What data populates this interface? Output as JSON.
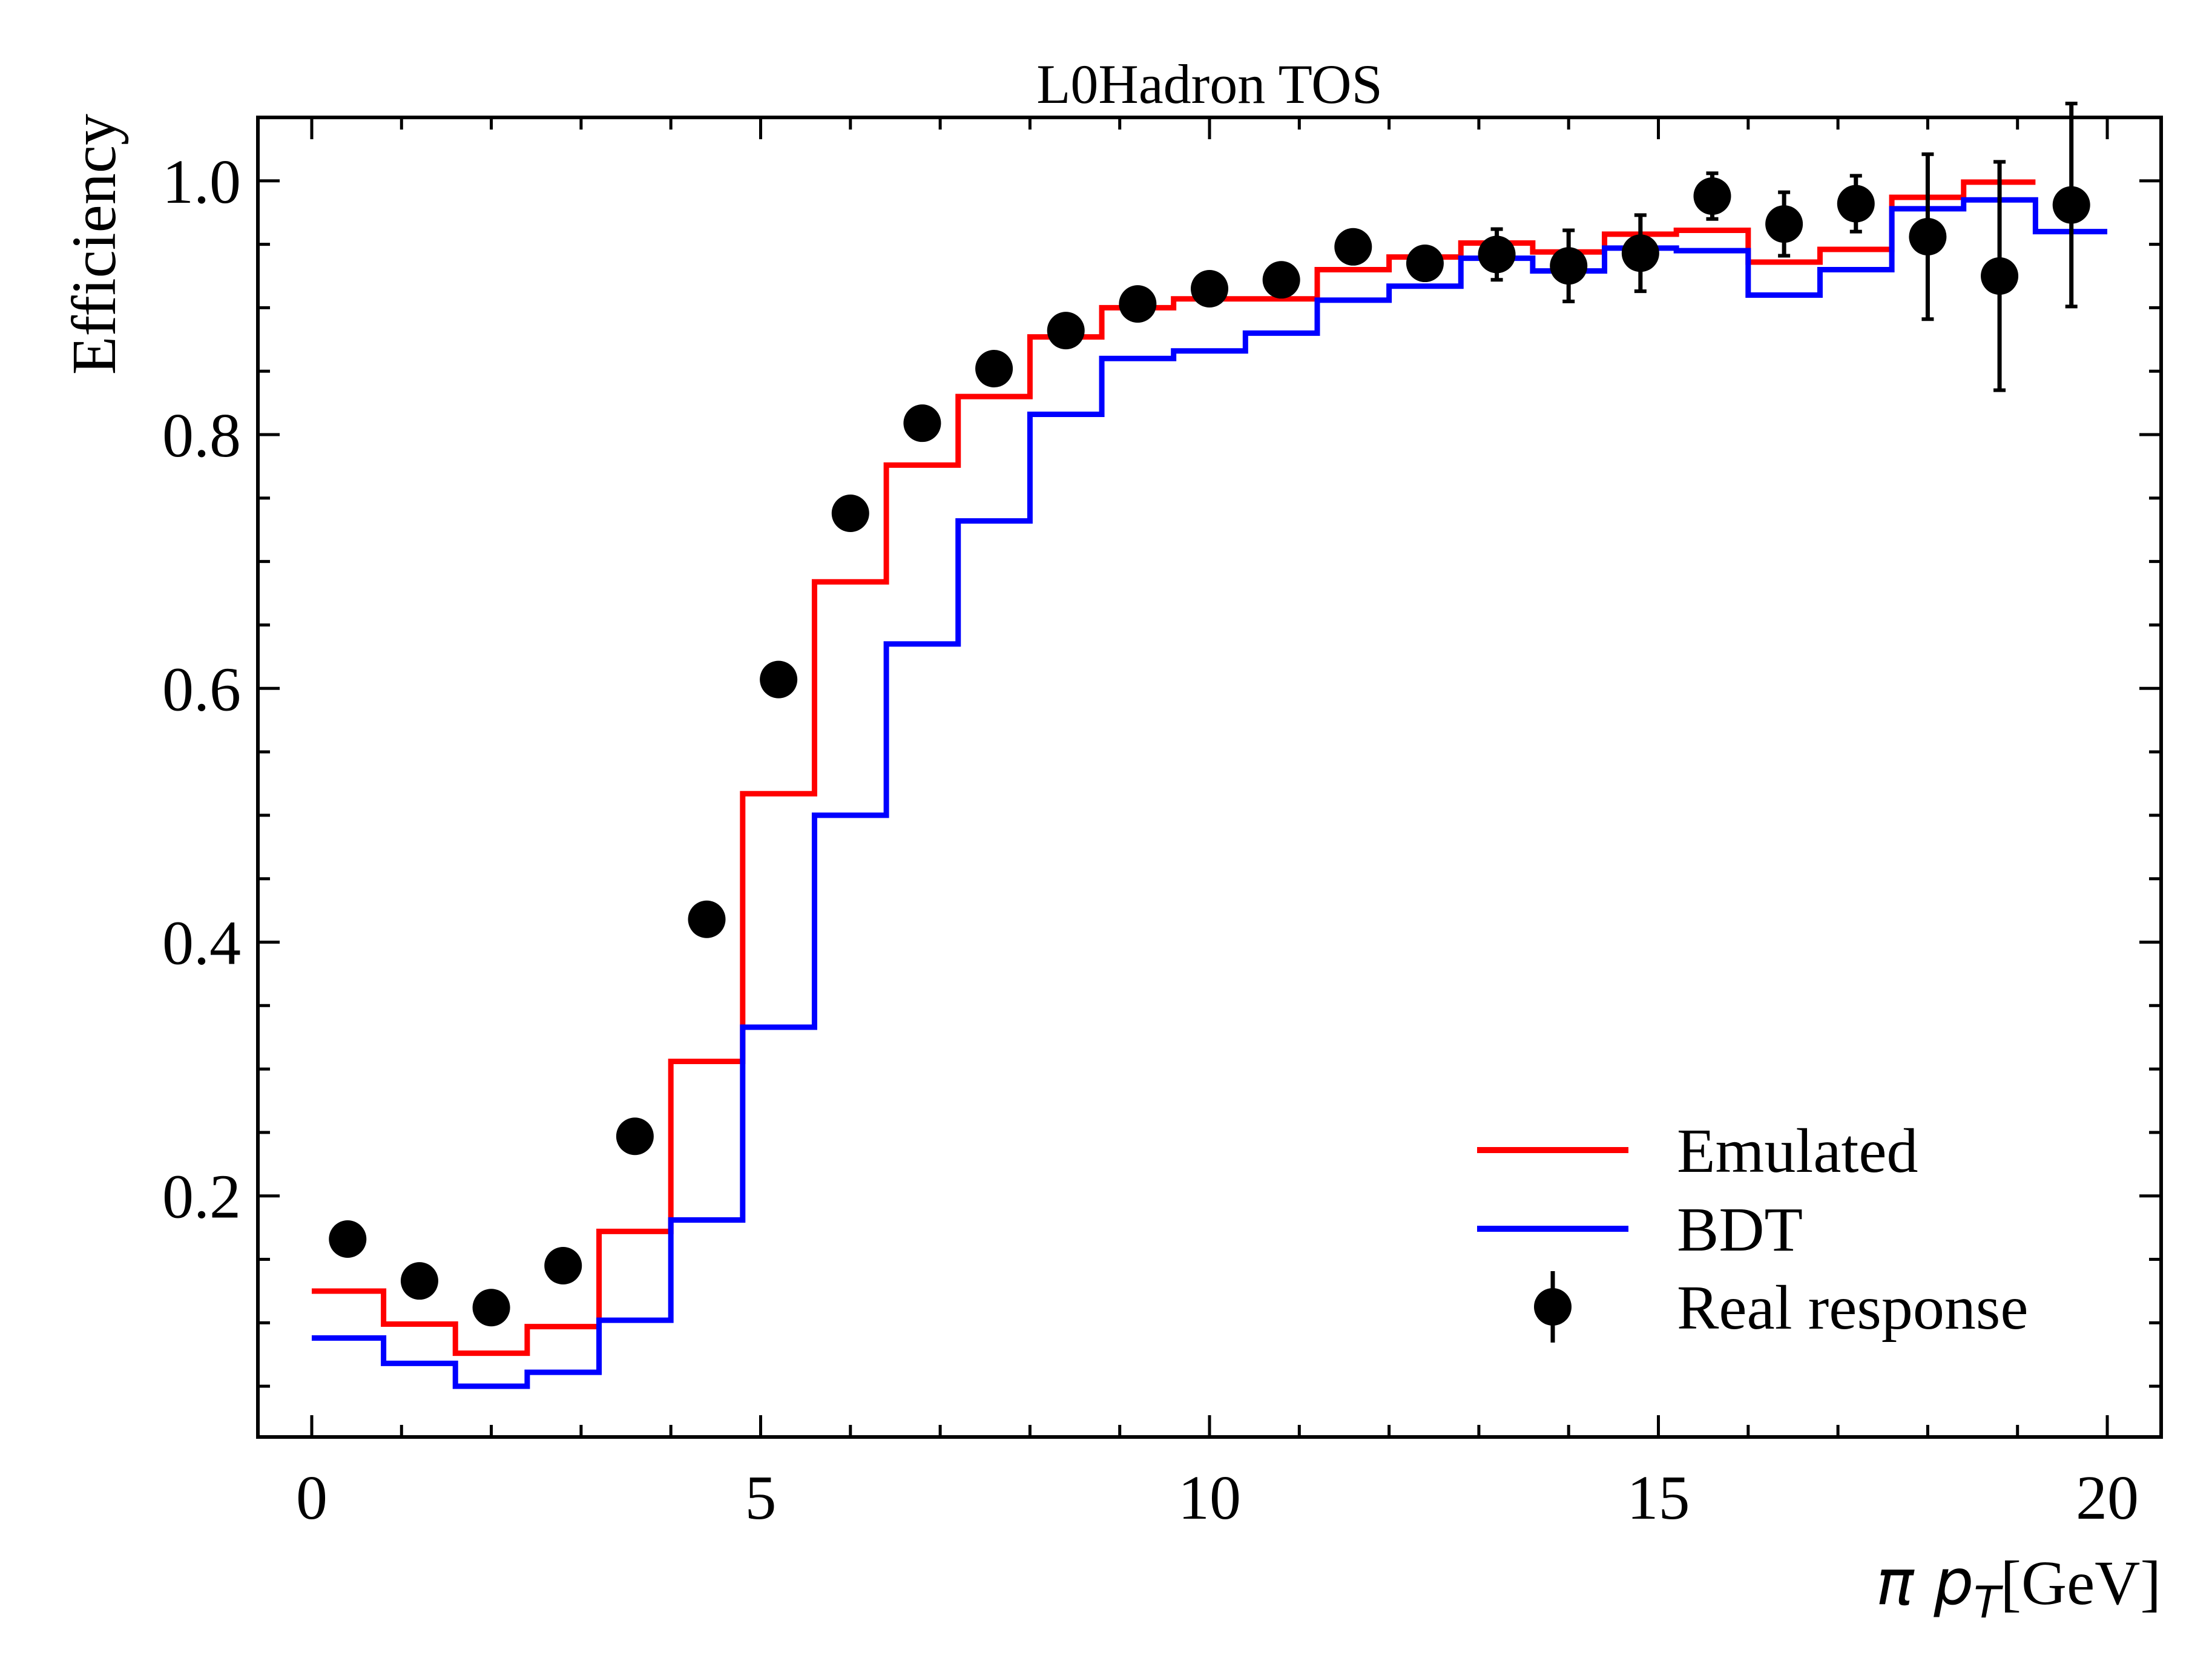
{
  "chart_data": {
    "type": "line",
    "title": "L0Hadron TOS",
    "xlabel_var": "π p",
    "xlabel_sub": "T",
    "xlabel_unit": "[GeV]",
    "ylabel": "Efficiency",
    "xlim": [
      -0.6,
      20.6
    ],
    "ylim": [
      0.01,
      1.05
    ],
    "x_ticks": [
      0,
      5,
      10,
      15,
      20
    ],
    "x_tick_labels": [
      "0",
      "5",
      "10",
      "15",
      "20"
    ],
    "y_ticks": [
      0.2,
      0.4,
      0.6,
      0.8,
      1.0
    ],
    "y_tick_labels": [
      "0.2",
      "0.4",
      "0.6",
      "0.8",
      "1.0"
    ],
    "legend_position": "lower-right",
    "bin_edges": [
      0,
      0.8,
      1.6,
      2.4,
      3.2,
      4.0,
      4.8,
      5.6,
      6.4,
      7.2,
      8.0,
      8.8,
      9.6,
      10.4,
      11.2,
      12.0,
      12.8,
      13.6,
      14.4,
      15.2,
      16.0,
      16.8,
      17.6,
      18.4,
      19.2,
      20.0
    ],
    "series": [
      {
        "name": "Emulated",
        "kind": "step",
        "color": "#ff0000",
        "values": [
          0.125,
          0.099,
          0.076,
          0.097,
          0.172,
          0.306,
          0.517,
          0.684,
          0.776,
          0.83,
          0.877,
          0.9,
          0.907,
          0.907,
          0.93,
          0.94,
          0.951,
          0.944,
          0.958,
          0.961,
          0.936,
          0.946,
          0.987,
          0.999,
          null
        ]
      },
      {
        "name": "BDT",
        "kind": "step",
        "color": "#0000ff",
        "values": [
          0.088,
          0.068,
          0.05,
          0.061,
          0.102,
          0.181,
          0.333,
          0.5,
          0.635,
          0.732,
          0.816,
          0.86,
          0.866,
          0.88,
          0.906,
          0.917,
          0.939,
          0.929,
          0.947,
          0.945,
          0.91,
          0.93,
          0.978,
          0.985,
          0.96
        ]
      },
      {
        "name": "Real response",
        "kind": "errorbar",
        "color": "#000000",
        "x": [
          0.4,
          1.2,
          2.0,
          2.8,
          3.6,
          4.4,
          5.2,
          6.0,
          6.8,
          7.6,
          8.4,
          9.2,
          10.0,
          10.8,
          11.6,
          12.4,
          13.2,
          14.0,
          14.8,
          15.6,
          16.4,
          17.2,
          18.0,
          18.8,
          19.6
        ],
        "y": [
          0.166,
          0.133,
          0.112,
          0.145,
          0.247,
          0.418,
          0.607,
          0.738,
          0.809,
          0.852,
          0.882,
          0.903,
          0.915,
          0.922,
          0.948,
          0.935,
          0.942,
          0.933,
          0.943,
          0.988,
          0.966,
          0.982,
          0.956,
          0.925,
          0.981
        ],
        "yerr": [
          0.004,
          0.004,
          0.004,
          0.004,
          0.004,
          0.004,
          0.005,
          0.005,
          0.005,
          0.005,
          0.006,
          0.006,
          0.006,
          0.007,
          0.008,
          0.012,
          0.02,
          0.028,
          0.03,
          0.018,
          0.025,
          0.022,
          0.065,
          0.09,
          0.08
        ]
      }
    ]
  }
}
